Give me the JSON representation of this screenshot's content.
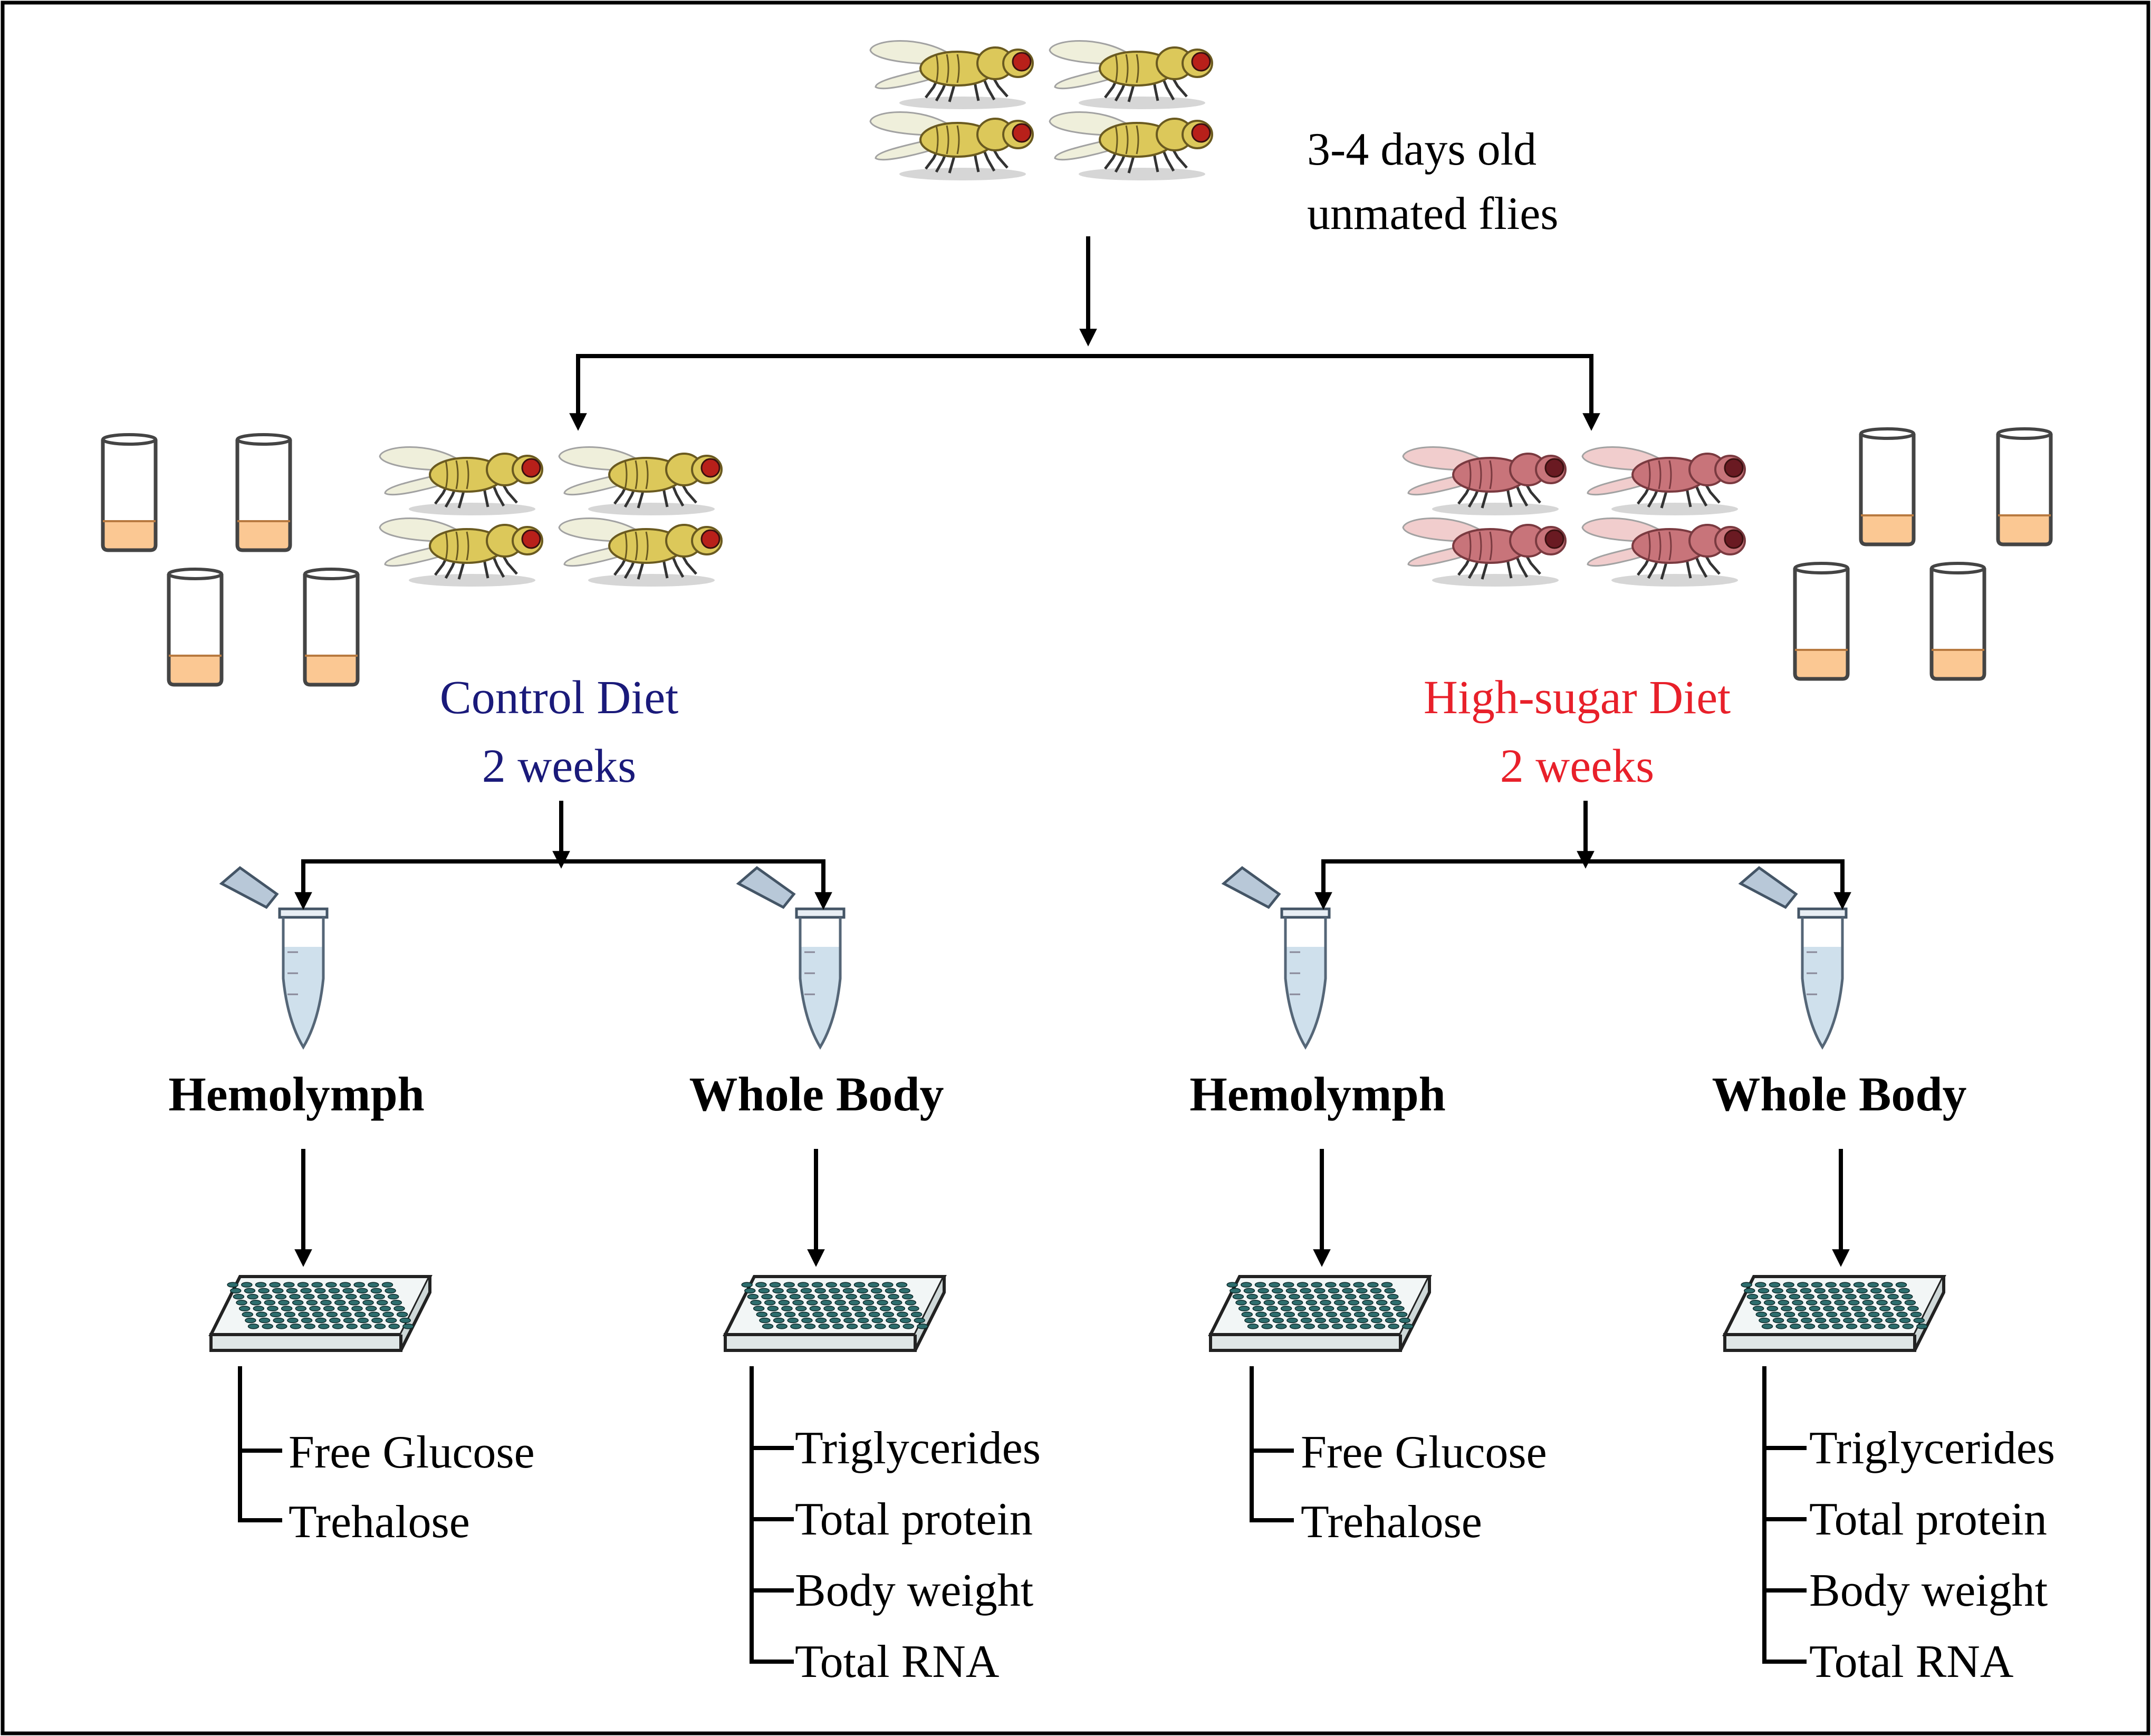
{
  "colors": {
    "text": "#000000",
    "control": "#1a1a7a",
    "high_sugar": "#e8202a",
    "fly_yellow": "#dcc85a",
    "fly_pink": "#c8747a",
    "food": "#fbc893",
    "tube_liquid": "#cfe0ec"
  },
  "header": {
    "line1": "3-4 days old",
    "line2": "unmated flies"
  },
  "groups": [
    {
      "diet": "Control Diet",
      "duration": "2 weeks",
      "color": "#1a1a7a",
      "fly_color": "#dcc85a",
      "samples": [
        {
          "title": "Hemolymph",
          "assays": [
            "Free Glucose",
            "Trehalose"
          ]
        },
        {
          "title": "Whole Body",
          "assays": [
            "Triglycerides",
            "Total protein",
            "Body weight",
            "Total RNA"
          ]
        }
      ]
    },
    {
      "diet": "High-sugar Diet",
      "duration": "2 weeks",
      "color": "#e8202a",
      "fly_color": "#c8747a",
      "samples": [
        {
          "title": "Hemolymph",
          "assays": [
            "Free Glucose",
            "Trehalose"
          ]
        },
        {
          "title": "Whole Body",
          "assays": [
            "Triglycerides",
            "Total protein",
            "Body weight",
            "Total RNA"
          ]
        }
      ]
    }
  ],
  "icons": {
    "fly": "fruit-fly-icon",
    "vial": "food-vial-icon",
    "tube": "microcentrifuge-tube-icon",
    "plate": "96-well-plate-icon"
  }
}
